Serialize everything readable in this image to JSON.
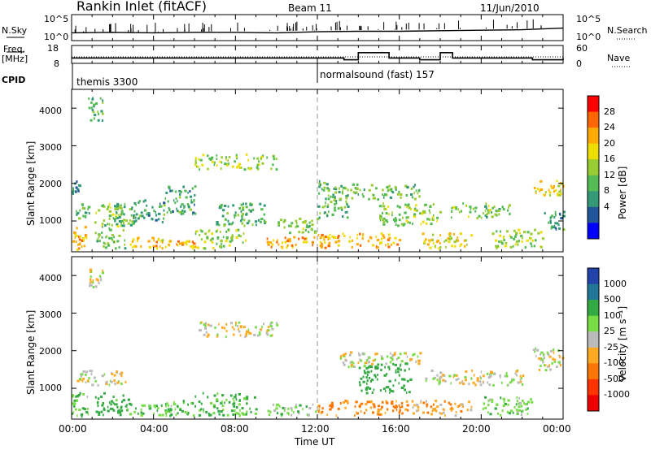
{
  "header": {
    "station": "Rankin Inlet (fitACF)",
    "beam": "Beam 11",
    "date": "11/Jun/2010"
  },
  "top_panels": {
    "nsky_label": "N.Sky",
    "nsky_ticks": [
      "10^5",
      "10^0"
    ],
    "nsearch_label": "N.Search",
    "nsearch_ticks": [
      "10^5",
      "10^0"
    ],
    "freq_label": "Freq.",
    "freq_unit": "[MHz]",
    "freq_ticks": [
      "18",
      "8"
    ],
    "nave_label": "Nave",
    "nave_ticks": [
      "60",
      "0"
    ],
    "cpid_label": "CPID",
    "cpid_segments": [
      {
        "label": "themis 3300",
        "start_hour": 0
      },
      {
        "label": "normalsound (fast) 157",
        "start_hour": 12
      }
    ]
  },
  "axes": {
    "xlabel": "Time UT",
    "x_ticks": [
      "00:00",
      "04:00",
      "08:00",
      "12:00",
      "16:00",
      "20:00",
      "00:00"
    ],
    "ylabel": "Slant Range [km]",
    "y_ticks": [
      "1000",
      "2000",
      "3000",
      "4000"
    ]
  },
  "power_scale": {
    "label": "Power [dB]",
    "ticks": [
      "28",
      "24",
      "20",
      "16",
      "12",
      "8",
      "4"
    ],
    "colors": [
      "#ff0000",
      "#ff6600",
      "#ffaa00",
      "#eedd00",
      "#99cc33",
      "#55bb55",
      "#339977",
      "#225599",
      "#0000ff"
    ]
  },
  "velocity_scale": {
    "label": "Velocity [m s⁻¹]",
    "ticks": [
      "1000",
      "500",
      "100",
      "25",
      "-25",
      "-100",
      "-500",
      "-1000"
    ],
    "colors": [
      "#2244aa",
      "#227799",
      "#33aa44",
      "#77dd44",
      "#bbbbbb",
      "#ffaa22",
      "#ff7700",
      "#ff3300",
      "#ee0000"
    ]
  },
  "chart_data": [
    {
      "type": "line",
      "title": "Rankin Inlet (fitACF) Beam 11 11/Jun/2010",
      "series": [
        {
          "name": "N.Sky",
          "x_hours": [
            0,
            2,
            4,
            6,
            8,
            10,
            12,
            14,
            16,
            18,
            20,
            22,
            24
          ],
          "values_log10": [
            1.5,
            1.6,
            1.5,
            1.6,
            1.6,
            1.5,
            1.7,
            1.8,
            1.8,
            1.9,
            2.0,
            2.1,
            2.4
          ]
        }
      ],
      "xlim_hours": [
        0,
        24
      ]
    },
    {
      "type": "line",
      "series": [
        {
          "name": "Freq.",
          "x_hours": [
            0,
            12,
            13.3,
            14,
            15.5,
            16,
            17,
            18,
            18.6,
            21.5,
            22.5,
            24
          ],
          "values_mhz": [
            11,
            11,
            10,
            14,
            11,
            11,
            10,
            14,
            11,
            11,
            10,
            11
          ]
        }
      ],
      "xlim_hours": [
        0,
        24
      ]
    },
    {
      "type": "heatmap",
      "quantity": "Power [dB]",
      "xlim_hours": [
        0,
        24
      ],
      "ylim_km": [
        180,
        4500
      ],
      "blobs": [
        {
          "t0": 0.0,
          "t1": 0.7,
          "r0": 250,
          "r1": 900,
          "v": 22
        },
        {
          "t0": 0.2,
          "t1": 0.9,
          "r0": 1100,
          "r1": 1500,
          "v": 9
        },
        {
          "t0": 0.0,
          "t1": 0.4,
          "r0": 1700,
          "r1": 2100,
          "v": 8
        },
        {
          "t0": 0.8,
          "t1": 1.5,
          "r0": 3700,
          "r1": 4300,
          "v": 9
        },
        {
          "t0": 1.1,
          "t1": 2.6,
          "r0": 300,
          "r1": 1500,
          "v": 12
        },
        {
          "t0": 2.0,
          "t1": 3.0,
          "r0": 900,
          "r1": 1500,
          "v": 10
        },
        {
          "t0": 2.8,
          "t1": 4.8,
          "r0": 300,
          "r1": 600,
          "v": 20
        },
        {
          "t0": 3.0,
          "t1": 4.5,
          "r0": 1000,
          "r1": 1600,
          "v": 8
        },
        {
          "t0": 4.5,
          "t1": 6.0,
          "r0": 1200,
          "r1": 2000,
          "v": 8
        },
        {
          "t0": 5.0,
          "t1": 6.0,
          "r0": 300,
          "r1": 500,
          "v": 22
        },
        {
          "t0": 6.0,
          "t1": 10.0,
          "r0": 2400,
          "r1": 2800,
          "v": 14
        },
        {
          "t0": 6.0,
          "t1": 8.5,
          "r0": 300,
          "r1": 800,
          "v": 13
        },
        {
          "t0": 7.0,
          "t1": 9.5,
          "r0": 900,
          "r1": 1500,
          "v": 9
        },
        {
          "t0": 9.5,
          "t1": 12.0,
          "r0": 300,
          "r1": 600,
          "v": 22
        },
        {
          "t0": 10.0,
          "t1": 12.0,
          "r0": 700,
          "r1": 1100,
          "v": 12
        },
        {
          "t0": 12.0,
          "t1": 13.5,
          "r0": 1100,
          "r1": 2100,
          "v": 10
        },
        {
          "t0": 12.0,
          "t1": 16.0,
          "r0": 300,
          "r1": 700,
          "v": 21
        },
        {
          "t0": 13.0,
          "t1": 17.0,
          "r0": 1600,
          "r1": 2000,
          "v": 11
        },
        {
          "t0": 15.0,
          "t1": 18.0,
          "r0": 900,
          "r1": 1500,
          "v": 13
        },
        {
          "t0": 17.0,
          "t1": 19.5,
          "r0": 300,
          "r1": 700,
          "v": 18
        },
        {
          "t0": 18.5,
          "t1": 21.5,
          "r0": 1100,
          "r1": 1500,
          "v": 12
        },
        {
          "t0": 20.5,
          "t1": 23.0,
          "r0": 300,
          "r1": 800,
          "v": 14
        },
        {
          "t0": 22.5,
          "t1": 24.0,
          "r0": 1700,
          "r1": 2100,
          "v": 18
        },
        {
          "t0": 23.0,
          "t1": 24.0,
          "r0": 800,
          "r1": 1300,
          "v": 8
        }
      ]
    },
    {
      "type": "heatmap",
      "quantity": "Velocity [m s⁻¹]",
      "xlim_hours": [
        0,
        24
      ],
      "ylim_km": [
        180,
        4500
      ],
      "blobs": [
        {
          "t0": 0.0,
          "t1": 0.8,
          "r0": 250,
          "r1": 900,
          "v": 80
        },
        {
          "t0": 0.2,
          "t1": 2.6,
          "r0": 1100,
          "r1": 1500,
          "v": 0
        },
        {
          "t0": 0.8,
          "t1": 1.5,
          "r0": 3700,
          "r1": 4200,
          "v": 0
        },
        {
          "t0": 1.1,
          "t1": 2.8,
          "r0": 300,
          "r1": 900,
          "v": 150
        },
        {
          "t0": 2.8,
          "t1": 4.8,
          "r0": 300,
          "r1": 600,
          "v": 90
        },
        {
          "t0": 4.5,
          "t1": 6.0,
          "r0": 300,
          "r1": 700,
          "v": 70
        },
        {
          "t0": 6.0,
          "t1": 10.0,
          "r0": 2400,
          "r1": 2800,
          "v": 0
        },
        {
          "t0": 6.0,
          "t1": 9.0,
          "r0": 300,
          "r1": 900,
          "v": 120
        },
        {
          "t0": 9.5,
          "t1": 12.0,
          "r0": 300,
          "r1": 600,
          "v": 60
        },
        {
          "t0": 12.0,
          "t1": 16.5,
          "r0": 300,
          "r1": 700,
          "v": -120
        },
        {
          "t0": 13.0,
          "t1": 17.0,
          "r0": 1600,
          "r1": 2000,
          "v": 0
        },
        {
          "t0": 14.0,
          "t1": 16.5,
          "r0": 900,
          "r1": 1700,
          "v": 300
        },
        {
          "t0": 16.5,
          "t1": 19.5,
          "r0": 300,
          "r1": 700,
          "v": -60
        },
        {
          "t0": 17.0,
          "t1": 22.0,
          "r0": 1100,
          "r1": 1500,
          "v": 0
        },
        {
          "t0": 20.0,
          "t1": 22.5,
          "r0": 300,
          "r1": 800,
          "v": 70
        },
        {
          "t0": 22.5,
          "t1": 24.0,
          "r0": 1500,
          "r1": 2100,
          "v": 0
        }
      ]
    }
  ]
}
